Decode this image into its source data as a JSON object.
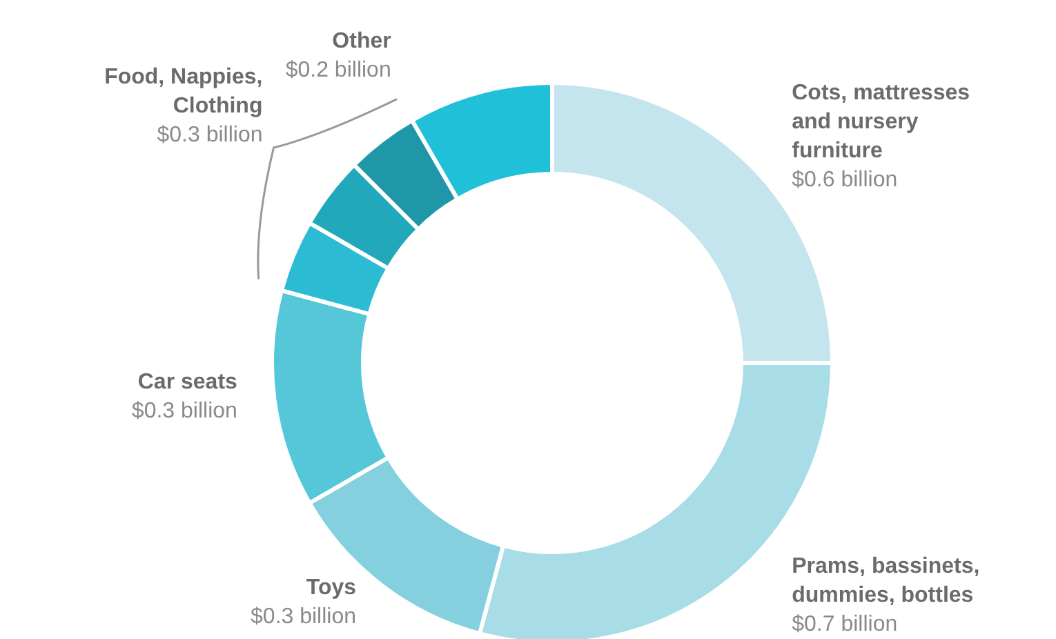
{
  "chart_data": {
    "type": "donut",
    "categories": [
      "Cots, mattresses and nursery furniture",
      "Prams, bassinets, dummies, bottles",
      "Toys",
      "Car seats",
      null,
      null,
      null,
      "Other"
    ],
    "values": [
      0.6,
      0.7,
      0.3,
      0.3,
      0.1,
      0.1,
      0.1,
      0.2
    ],
    "colors": [
      "#c5e5ee",
      "#a8dce6",
      "#85d0df",
      "#56c6d9",
      "#2bbcd3",
      "#22a8bb",
      "#1f97a8",
      "#20c0d8"
    ],
    "value_labels": [
      "$0.6 billion",
      "$0.7 billion",
      "$0.3 billion",
      "$0.3 billion",
      null,
      null,
      null,
      "$0.2 billion"
    ],
    "annotations": [
      "Food, Nappies, Clothing",
      "$0.3 billion"
    ],
    "legend": false
  }
}
